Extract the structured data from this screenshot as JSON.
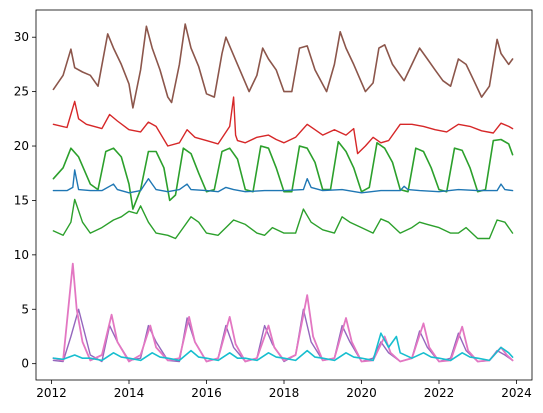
{
  "chart_data": {
    "type": "line",
    "title": "",
    "xlabel": "",
    "ylabel": "",
    "xlim": [
      2011.6,
      2024.4
    ],
    "ylim": [
      -1.5,
      32.5
    ],
    "grid": false,
    "legend": "none",
    "x_ticks": [
      2012,
      2014,
      2016,
      2018,
      2020,
      2022,
      2024
    ],
    "x_tick_labels": [
      "2012",
      "2014",
      "2016",
      "2018",
      "2020",
      "2022",
      "2024"
    ],
    "y_ticks": [
      0,
      5,
      10,
      15,
      20,
      25,
      30
    ],
    "y_tick_labels": [
      "0",
      "5",
      "10",
      "15",
      "20",
      "25",
      "30"
    ],
    "series": [
      {
        "color": "#8c564b",
        "stroke_width": 1.6,
        "x": [
          2012.05,
          2012.3,
          2012.5,
          2012.6,
          2012.8,
          2013.0,
          2013.2,
          2013.45,
          2013.6,
          2013.8,
          2014.0,
          2014.1,
          2014.3,
          2014.45,
          2014.6,
          2014.8,
          2015.0,
          2015.1,
          2015.3,
          2015.45,
          2015.6,
          2015.8,
          2016.0,
          2016.2,
          2016.4,
          2016.5,
          2016.8,
          2017.1,
          2017.3,
          2017.45,
          2017.6,
          2017.8,
          2018.0,
          2018.2,
          2018.4,
          2018.6,
          2018.8,
          2019.1,
          2019.3,
          2019.45,
          2019.6,
          2019.8,
          2020.1,
          2020.3,
          2020.45,
          2020.6,
          2020.8,
          2021.1,
          2021.3,
          2021.5,
          2021.7,
          2021.9,
          2022.1,
          2022.3,
          2022.5,
          2022.7,
          2022.9,
          2023.1,
          2023.3,
          2023.5,
          2023.6,
          2023.8,
          2023.9
        ],
        "values": [
          25.2,
          26.5,
          28.9,
          27.2,
          26.8,
          26.5,
          25.5,
          30.3,
          29.0,
          27.5,
          25.7,
          23.5,
          27.0,
          31.0,
          29.0,
          27.0,
          24.5,
          24.0,
          27.5,
          31.2,
          29.0,
          27.3,
          24.8,
          24.5,
          28.5,
          30.0,
          27.5,
          25.0,
          26.5,
          29.0,
          28.0,
          27.0,
          25.0,
          25.0,
          29.0,
          29.2,
          27.0,
          25.0,
          27.5,
          30.5,
          29.0,
          27.5,
          25.0,
          25.8,
          29.0,
          29.3,
          27.5,
          26.0,
          27.5,
          29.0,
          28.0,
          27.0,
          26.0,
          25.5,
          28.0,
          27.5,
          26.0,
          24.5,
          25.5,
          29.8,
          28.5,
          27.5,
          28.0
        ]
      },
      {
        "color": "#d62728",
        "stroke_width": 1.4,
        "x": [
          2012.05,
          2012.4,
          2012.6,
          2012.7,
          2012.9,
          2013.3,
          2013.5,
          2013.7,
          2014.0,
          2014.3,
          2014.5,
          2014.7,
          2015.0,
          2015.3,
          2015.5,
          2015.7,
          2016.0,
          2016.3,
          2016.6,
          2016.7,
          2016.75,
          2016.8,
          2017.0,
          2017.3,
          2017.6,
          2017.8,
          2018.0,
          2018.3,
          2018.6,
          2018.8,
          2019.0,
          2019.3,
          2019.6,
          2019.8,
          2019.9,
          2020.1,
          2020.3,
          2020.5,
          2020.7,
          2021.0,
          2021.3,
          2021.6,
          2021.9,
          2022.2,
          2022.5,
          2022.8,
          2023.1,
          2023.4,
          2023.6,
          2023.8,
          2023.9
        ],
        "values": [
          22.0,
          21.7,
          24.1,
          22.5,
          22.0,
          21.6,
          22.9,
          22.3,
          21.5,
          21.3,
          22.2,
          21.8,
          20.0,
          20.3,
          21.5,
          20.8,
          20.5,
          20.2,
          21.8,
          24.5,
          21.0,
          20.5,
          20.3,
          20.8,
          21.0,
          20.6,
          20.3,
          20.8,
          22.0,
          21.5,
          21.0,
          21.5,
          21.0,
          21.6,
          19.3,
          20.0,
          20.8,
          20.3,
          20.5,
          22.0,
          22.0,
          21.8,
          21.5,
          21.3,
          22.0,
          21.8,
          21.4,
          21.2,
          22.1,
          21.8,
          21.6
        ]
      },
      {
        "color": "#2ca02c",
        "stroke_width": 1.6,
        "x": [
          2012.05,
          2012.3,
          2012.5,
          2012.7,
          2013.0,
          2013.2,
          2013.4,
          2013.6,
          2013.8,
          2014.0,
          2014.1,
          2014.3,
          2014.5,
          2014.7,
          2014.9,
          2015.05,
          2015.2,
          2015.4,
          2015.6,
          2015.8,
          2016.0,
          2016.2,
          2016.4,
          2016.6,
          2016.8,
          2017.0,
          2017.2,
          2017.4,
          2017.6,
          2017.8,
          2018.0,
          2018.2,
          2018.4,
          2018.6,
          2018.8,
          2019.0,
          2019.2,
          2019.4,
          2019.6,
          2019.8,
          2020.0,
          2020.2,
          2020.4,
          2020.6,
          2020.8,
          2021.0,
          2021.2,
          2021.4,
          2021.6,
          2021.8,
          2022.0,
          2022.2,
          2022.4,
          2022.6,
          2022.8,
          2023.0,
          2023.2,
          2023.4,
          2023.6,
          2023.8,
          2023.9
        ],
        "values": [
          17.0,
          18.0,
          19.8,
          19.0,
          16.5,
          16.0,
          19.5,
          19.8,
          19.0,
          16.5,
          14.2,
          16.0,
          19.5,
          19.5,
          18.0,
          15.0,
          15.5,
          19.8,
          19.3,
          17.5,
          15.8,
          16.0,
          19.5,
          19.8,
          18.8,
          16.0,
          15.8,
          20.0,
          19.8,
          18.0,
          15.8,
          15.8,
          20.0,
          19.8,
          18.5,
          16.0,
          16.0,
          20.4,
          19.5,
          18.0,
          15.8,
          16.2,
          20.3,
          19.8,
          18.5,
          16.0,
          15.8,
          19.8,
          19.5,
          18.0,
          16.0,
          15.8,
          19.8,
          19.6,
          18.0,
          15.8,
          16.0,
          20.5,
          20.6,
          20.2,
          19.2
        ]
      },
      {
        "color": "#1f77b4",
        "stroke_width": 1.4,
        "x": [
          2012.05,
          2012.4,
          2012.55,
          2012.6,
          2012.7,
          2013.0,
          2013.3,
          2013.55,
          2013.6,
          2013.7,
          2014.0,
          2014.3,
          2014.5,
          2014.6,
          2014.7,
          2015.0,
          2015.3,
          2015.5,
          2015.6,
          2016.0,
          2016.3,
          2016.5,
          2016.7,
          2017.0,
          2017.5,
          2018.0,
          2018.5,
          2018.6,
          2018.7,
          2019.0,
          2019.5,
          2020.0,
          2020.5,
          2021.0,
          2021.1,
          2021.2,
          2021.5,
          2022.0,
          2022.5,
          2023.0,
          2023.5,
          2023.6,
          2023.7,
          2023.9
        ],
        "values": [
          15.9,
          15.9,
          16.2,
          17.8,
          16.0,
          15.9,
          15.9,
          16.4,
          16.5,
          16.0,
          15.7,
          15.9,
          17.0,
          16.5,
          16.0,
          15.8,
          16.0,
          16.5,
          16.0,
          15.9,
          15.8,
          16.2,
          16.0,
          15.8,
          15.9,
          15.9,
          16.0,
          17.0,
          16.2,
          15.9,
          16.0,
          15.7,
          15.9,
          15.9,
          16.3,
          16.0,
          15.9,
          15.8,
          16.0,
          15.9,
          15.9,
          16.5,
          16.0,
          15.9
        ]
      },
      {
        "color": "#2ca02c",
        "stroke_width": 1.4,
        "x": [
          2012.05,
          2012.3,
          2012.5,
          2012.6,
          2012.8,
          2013.0,
          2013.3,
          2013.6,
          2013.8,
          2014.0,
          2014.2,
          2014.3,
          2014.5,
          2014.7,
          2015.0,
          2015.2,
          2015.4,
          2015.6,
          2015.8,
          2016.0,
          2016.3,
          2016.5,
          2016.7,
          2017.0,
          2017.3,
          2017.5,
          2017.7,
          2018.0,
          2018.3,
          2018.5,
          2018.7,
          2019.0,
          2019.3,
          2019.5,
          2019.7,
          2020.0,
          2020.3,
          2020.5,
          2020.7,
          2021.0,
          2021.3,
          2021.5,
          2021.7,
          2022.0,
          2022.3,
          2022.5,
          2022.7,
          2023.0,
          2023.3,
          2023.5,
          2023.7,
          2023.9
        ],
        "values": [
          12.2,
          11.8,
          13.0,
          15.1,
          13.0,
          12.0,
          12.5,
          13.2,
          13.5,
          14.0,
          13.8,
          14.5,
          13.0,
          12.0,
          11.8,
          11.5,
          12.5,
          13.5,
          13.0,
          12.0,
          11.8,
          12.5,
          13.2,
          12.8,
          12.0,
          11.8,
          12.5,
          12.0,
          12.0,
          14.2,
          13.0,
          12.3,
          12.0,
          13.5,
          13.0,
          12.5,
          12.0,
          13.3,
          13.0,
          12.0,
          12.5,
          13.0,
          12.8,
          12.5,
          12.0,
          12.0,
          12.5,
          11.5,
          11.5,
          13.2,
          13.0,
          12.0
        ]
      },
      {
        "color": "#9467bd",
        "stroke_width": 1.4,
        "x": [
          2012.05,
          2012.3,
          2012.5,
          2012.7,
          2013.0,
          2013.3,
          2013.5,
          2013.7,
          2014.0,
          2014.3,
          2014.5,
          2014.7,
          2015.0,
          2015.3,
          2015.5,
          2015.7,
          2016.0,
          2016.3,
          2016.5,
          2016.7,
          2017.0,
          2017.3,
          2017.5,
          2017.7,
          2018.0,
          2018.3,
          2018.5,
          2018.7,
          2019.0,
          2019.3,
          2019.5,
          2019.7,
          2020.0,
          2020.3,
          2020.5,
          2020.7,
          2021.0,
          2021.3,
          2021.5,
          2021.7,
          2022.0,
          2022.3,
          2022.5,
          2022.7,
          2023.0,
          2023.3,
          2023.5,
          2023.7,
          2023.9
        ],
        "values": [
          0.3,
          0.2,
          2.5,
          5.0,
          0.8,
          0.2,
          3.5,
          2.0,
          0.3,
          0.5,
          3.5,
          2.0,
          0.3,
          0.2,
          4.2,
          2.0,
          0.2,
          0.5,
          3.5,
          1.5,
          0.2,
          0.5,
          3.5,
          1.8,
          0.2,
          0.8,
          5.0,
          2.0,
          0.3,
          0.5,
          3.5,
          2.0,
          0.2,
          0.5,
          2.0,
          1.0,
          0.2,
          0.5,
          3.0,
          1.5,
          0.2,
          0.5,
          2.8,
          1.2,
          0.2,
          0.3,
          1.2,
          0.8,
          0.3
        ]
      },
      {
        "color": "#e377c2",
        "stroke_width": 1.8,
        "x": [
          2012.05,
          2012.3,
          2012.55,
          2012.65,
          2012.8,
          2013.0,
          2013.3,
          2013.55,
          2013.7,
          2014.0,
          2014.3,
          2014.55,
          2014.7,
          2015.0,
          2015.3,
          2015.55,
          2015.7,
          2016.0,
          2016.3,
          2016.6,
          2016.75,
          2017.0,
          2017.3,
          2017.6,
          2017.75,
          2018.0,
          2018.3,
          2018.6,
          2018.75,
          2019.0,
          2019.3,
          2019.6,
          2019.75,
          2020.0,
          2020.3,
          2020.6,
          2020.75,
          2021.0,
          2021.3,
          2021.6,
          2021.75,
          2022.0,
          2022.3,
          2022.6,
          2022.75,
          2023.0,
          2023.3,
          2023.6,
          2023.75,
          2023.9
        ],
        "values": [
          0.5,
          0.3,
          9.2,
          5.0,
          2.0,
          0.3,
          0.8,
          4.5,
          2.0,
          0.2,
          0.8,
          3.5,
          1.5,
          0.3,
          0.5,
          4.3,
          2.0,
          0.2,
          0.5,
          4.3,
          1.8,
          0.2,
          0.5,
          3.5,
          1.5,
          0.3,
          0.8,
          6.3,
          2.5,
          0.3,
          0.5,
          4.2,
          2.0,
          0.2,
          0.3,
          2.5,
          1.0,
          0.2,
          0.5,
          3.7,
          1.5,
          0.2,
          0.3,
          3.4,
          1.2,
          0.2,
          0.3,
          1.5,
          0.8,
          0.3
        ]
      },
      {
        "color": "#17becf",
        "stroke_width": 1.6,
        "x": [
          2012.05,
          2012.3,
          2012.6,
          2012.8,
          2013.0,
          2013.3,
          2013.6,
          2013.8,
          2014.0,
          2014.3,
          2014.6,
          2014.8,
          2015.0,
          2015.3,
          2015.6,
          2015.8,
          2016.0,
          2016.3,
          2016.6,
          2016.8,
          2017.0,
          2017.3,
          2017.6,
          2017.8,
          2018.0,
          2018.3,
          2018.6,
          2018.8,
          2019.0,
          2019.3,
          2019.6,
          2019.8,
          2020.0,
          2020.3,
          2020.5,
          2020.7,
          2020.9,
          2021.0,
          2021.3,
          2021.6,
          2021.8,
          2022.0,
          2022.3,
          2022.6,
          2022.8,
          2023.0,
          2023.3,
          2023.6,
          2023.8,
          2023.9
        ],
        "values": [
          0.5,
          0.4,
          0.8,
          0.5,
          0.5,
          0.3,
          1.0,
          0.6,
          0.5,
          0.3,
          1.0,
          0.6,
          0.5,
          0.3,
          1.2,
          0.6,
          0.5,
          0.3,
          1.0,
          0.5,
          0.5,
          0.3,
          1.0,
          0.6,
          0.5,
          0.3,
          1.2,
          0.6,
          0.5,
          0.3,
          1.0,
          0.6,
          0.5,
          0.3,
          2.8,
          1.5,
          2.5,
          1.0,
          0.5,
          1.0,
          0.6,
          0.5,
          0.3,
          1.0,
          0.6,
          0.5,
          0.3,
          1.5,
          1.0,
          0.6
        ]
      }
    ]
  }
}
